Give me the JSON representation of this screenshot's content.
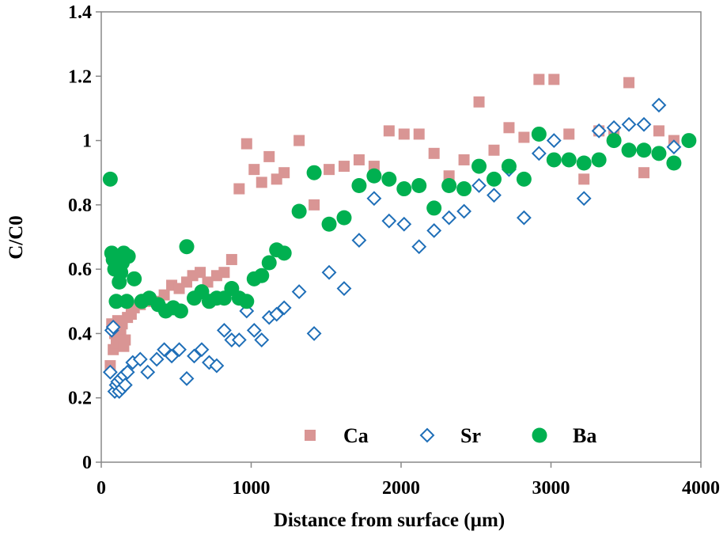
{
  "chart_data": {
    "type": "scatter",
    "title": "",
    "xlabel": "Distance from surface (µm)",
    "ylabel": "C/C0",
    "xlim": [
      0,
      4000
    ],
    "ylim": [
      0,
      1.4
    ],
    "x_ticks": [
      "0",
      "1000",
      "2000",
      "3000",
      "4000"
    ],
    "y_ticks": [
      "0",
      "0.2",
      "0.4",
      "0.6",
      "0.8",
      "1",
      "1.2",
      "1.4"
    ],
    "grid": false,
    "legend_position": "bottom-center",
    "series": [
      {
        "name": "Ca",
        "marker": "square",
        "color": "#d99594",
        "points": [
          [
            60,
            0.3
          ],
          [
            70,
            0.43
          ],
          [
            80,
            0.35
          ],
          [
            90,
            0.4
          ],
          [
            100,
            0.37
          ],
          [
            110,
            0.44
          ],
          [
            120,
            0.38
          ],
          [
            130,
            0.41
          ],
          [
            140,
            0.43
          ],
          [
            150,
            0.36
          ],
          [
            160,
            0.38
          ],
          [
            175,
            0.45
          ],
          [
            200,
            0.46
          ],
          [
            220,
            0.48
          ],
          [
            260,
            0.49
          ],
          [
            300,
            0.5
          ],
          [
            350,
            0.5
          ],
          [
            420,
            0.52
          ],
          [
            470,
            0.55
          ],
          [
            520,
            0.54
          ],
          [
            570,
            0.56
          ],
          [
            610,
            0.58
          ],
          [
            660,
            0.59
          ],
          [
            710,
            0.56
          ],
          [
            770,
            0.58
          ],
          [
            820,
            0.59
          ],
          [
            870,
            0.63
          ],
          [
            920,
            0.85
          ],
          [
            970,
            0.99
          ],
          [
            1020,
            0.91
          ],
          [
            1070,
            0.87
          ],
          [
            1120,
            0.95
          ],
          [
            1170,
            0.88
          ],
          [
            1220,
            0.9
          ],
          [
            1320,
            1.0
          ],
          [
            1420,
            0.8
          ],
          [
            1520,
            0.91
          ],
          [
            1620,
            0.92
          ],
          [
            1720,
            0.94
          ],
          [
            1820,
            0.92
          ],
          [
            1920,
            1.03
          ],
          [
            2020,
            1.02
          ],
          [
            2120,
            1.02
          ],
          [
            2220,
            0.96
          ],
          [
            2320,
            0.89
          ],
          [
            2420,
            0.94
          ],
          [
            2520,
            1.12
          ],
          [
            2620,
            0.97
          ],
          [
            2720,
            1.04
          ],
          [
            2820,
            1.01
          ],
          [
            2920,
            1.19
          ],
          [
            3020,
            1.19
          ],
          [
            3120,
            1.02
          ],
          [
            3220,
            0.88
          ],
          [
            3320,
            1.03
          ],
          [
            3420,
            1.03
          ],
          [
            3520,
            1.18
          ],
          [
            3620,
            0.9
          ],
          [
            3720,
            1.03
          ],
          [
            3820,
            1.0
          ]
        ]
      },
      {
        "name": "Sr",
        "marker": "diamond",
        "color": "#1f6fb8",
        "points": [
          [
            60,
            0.28
          ],
          [
            70,
            0.41
          ],
          [
            80,
            0.42
          ],
          [
            90,
            0.22
          ],
          [
            100,
            0.24
          ],
          [
            110,
            0.25
          ],
          [
            120,
            0.22
          ],
          [
            130,
            0.26
          ],
          [
            140,
            0.23
          ],
          [
            150,
            0.27
          ],
          [
            160,
            0.24
          ],
          [
            175,
            0.28
          ],
          [
            210,
            0.31
          ],
          [
            260,
            0.32
          ],
          [
            310,
            0.28
          ],
          [
            370,
            0.32
          ],
          [
            420,
            0.35
          ],
          [
            470,
            0.33
          ],
          [
            520,
            0.35
          ],
          [
            570,
            0.26
          ],
          [
            620,
            0.33
          ],
          [
            670,
            0.35
          ],
          [
            720,
            0.31
          ],
          [
            770,
            0.3
          ],
          [
            820,
            0.41
          ],
          [
            870,
            0.38
          ],
          [
            920,
            0.38
          ],
          [
            970,
            0.47
          ],
          [
            1020,
            0.41
          ],
          [
            1070,
            0.38
          ],
          [
            1120,
            0.45
          ],
          [
            1170,
            0.46
          ],
          [
            1220,
            0.48
          ],
          [
            1320,
            0.53
          ],
          [
            1420,
            0.4
          ],
          [
            1520,
            0.59
          ],
          [
            1620,
            0.54
          ],
          [
            1720,
            0.69
          ],
          [
            1820,
            0.82
          ],
          [
            1920,
            0.75
          ],
          [
            2020,
            0.74
          ],
          [
            2120,
            0.67
          ],
          [
            2220,
            0.72
          ],
          [
            2320,
            0.76
          ],
          [
            2420,
            0.78
          ],
          [
            2520,
            0.86
          ],
          [
            2620,
            0.83
          ],
          [
            2720,
            0.91
          ],
          [
            2820,
            0.76
          ],
          [
            2920,
            0.96
          ],
          [
            3020,
            1.0
          ],
          [
            3120,
            0.94
          ],
          [
            3220,
            0.82
          ],
          [
            3320,
            1.03
          ],
          [
            3420,
            1.04
          ],
          [
            3520,
            1.05
          ],
          [
            3620,
            1.05
          ],
          [
            3720,
            1.11
          ],
          [
            3820,
            0.98
          ]
        ]
      },
      {
        "name": "Ba",
        "marker": "circle",
        "color": "#00b050",
        "points": [
          [
            60,
            0.88
          ],
          [
            70,
            0.65
          ],
          [
            80,
            0.63
          ],
          [
            90,
            0.6
          ],
          [
            100,
            0.5
          ],
          [
            110,
            0.64
          ],
          [
            120,
            0.56
          ],
          [
            130,
            0.59
          ],
          [
            140,
            0.62
          ],
          [
            150,
            0.65
          ],
          [
            160,
            0.64
          ],
          [
            170,
            0.5
          ],
          [
            180,
            0.64
          ],
          [
            220,
            0.57
          ],
          [
            270,
            0.5
          ],
          [
            320,
            0.51
          ],
          [
            380,
            0.49
          ],
          [
            430,
            0.47
          ],
          [
            480,
            0.48
          ],
          [
            530,
            0.47
          ],
          [
            570,
            0.67
          ],
          [
            620,
            0.51
          ],
          [
            670,
            0.53
          ],
          [
            720,
            0.5
          ],
          [
            770,
            0.51
          ],
          [
            820,
            0.51
          ],
          [
            870,
            0.54
          ],
          [
            920,
            0.51
          ],
          [
            970,
            0.5
          ],
          [
            1020,
            0.57
          ],
          [
            1070,
            0.58
          ],
          [
            1120,
            0.62
          ],
          [
            1170,
            0.66
          ],
          [
            1220,
            0.65
          ],
          [
            1320,
            0.78
          ],
          [
            1420,
            0.9
          ],
          [
            1520,
            0.74
          ],
          [
            1620,
            0.76
          ],
          [
            1720,
            0.86
          ],
          [
            1820,
            0.89
          ],
          [
            1920,
            0.88
          ],
          [
            2020,
            0.85
          ],
          [
            2120,
            0.86
          ],
          [
            2220,
            0.79
          ],
          [
            2320,
            0.86
          ],
          [
            2420,
            0.85
          ],
          [
            2520,
            0.92
          ],
          [
            2620,
            0.88
          ],
          [
            2720,
            0.92
          ],
          [
            2820,
            0.88
          ],
          [
            2920,
            1.02
          ],
          [
            3020,
            0.94
          ],
          [
            3120,
            0.94
          ],
          [
            3220,
            0.93
          ],
          [
            3320,
            0.94
          ],
          [
            3420,
            1.0
          ],
          [
            3520,
            0.97
          ],
          [
            3620,
            0.97
          ],
          [
            3720,
            0.96
          ],
          [
            3820,
            0.93
          ],
          [
            3920,
            1.0
          ]
        ]
      }
    ]
  }
}
